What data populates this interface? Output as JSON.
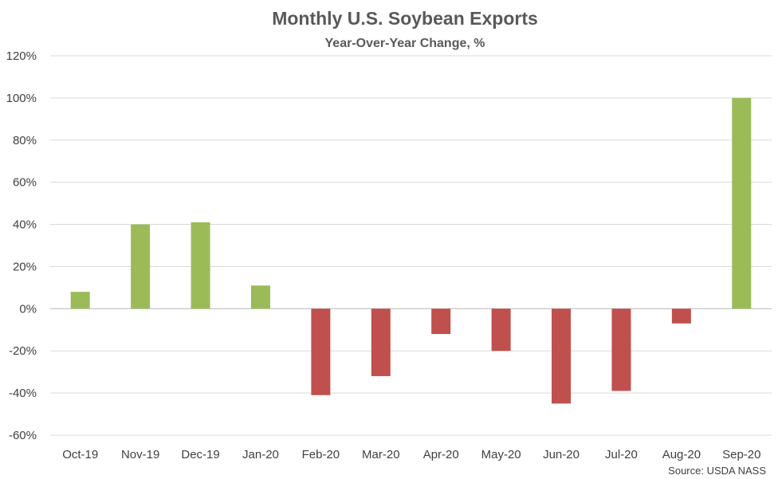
{
  "chart_data": {
    "type": "bar",
    "title": "Monthly U.S. Soybean Exports",
    "subtitle": "Year-Over-Year Change, %",
    "categories": [
      "Oct-19",
      "Nov-19",
      "Dec-19",
      "Jan-20",
      "Feb-20",
      "Mar-20",
      "Apr-20",
      "May-20",
      "Jun-20",
      "Jul-20",
      "Aug-20",
      "Sep-20"
    ],
    "values": [
      8,
      40,
      41,
      11,
      -41,
      -32,
      -12,
      -20,
      -45,
      -39,
      -7,
      100
    ],
    "value_unit": "%",
    "ylim": [
      -60,
      120
    ],
    "yticks": [
      120,
      100,
      80,
      60,
      40,
      20,
      0,
      -20,
      -40,
      -60
    ],
    "ytick_labels": [
      "120%",
      "100%",
      "80%",
      "60%",
      "40%",
      "20%",
      "0%",
      "-20%",
      "-40%",
      "-60%"
    ],
    "grid": true,
    "legend": "none",
    "colors": {
      "positive": "#9bbb59",
      "negative": "#c0504d",
      "grid": "#d9d9d9",
      "text": "#595959"
    },
    "source": "Source: USDA NASS"
  }
}
